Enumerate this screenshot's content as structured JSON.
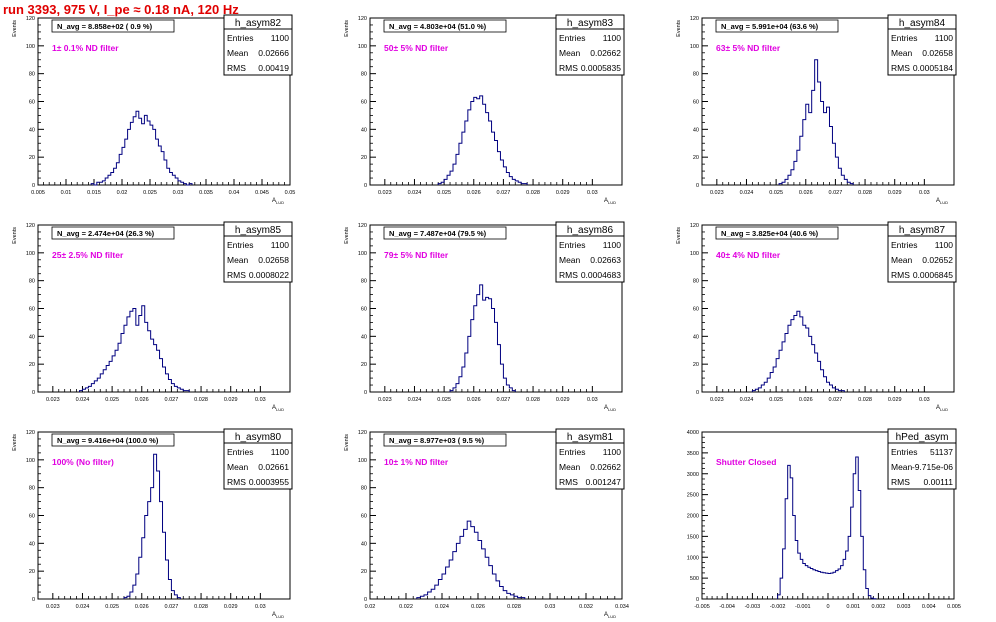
{
  "page_title": "run 3393,   975 V, I_pe ≈ 0.18 nA, 120 Hz",
  "colors": {
    "histogram": "#000080",
    "filter_label": "#e000e0",
    "title": "#e00000"
  },
  "stat_labels": {
    "entries": "Entries",
    "mean": "Mean",
    "rms": "RMS"
  },
  "chart_data": [
    {
      "type": "histogram",
      "name": "h_asym82",
      "entries": "1100",
      "mean": "0.02666",
      "rms": "0.00419",
      "navg": "N_avg = 8.858e+02 ( 0.9 %)",
      "filter": "1± 0.1% ND filter",
      "ylabel": "Events",
      "xlabel": "A_LUD",
      "xlim": [
        0.005,
        0.05
      ],
      "ylim": [
        0,
        120
      ],
      "xticks": [
        0.005,
        0.01,
        0.015,
        0.02,
        0.025,
        0.03,
        0.035,
        0.04,
        0.045,
        0.05
      ],
      "xtick_labels": [
        "0.005",
        "0.01",
        "0.015",
        "0.02",
        "0.025",
        "0.03",
        "0.035",
        "0.04",
        "0.045",
        "0.05"
      ],
      "yticks": [
        0,
        20,
        40,
        60,
        80,
        100,
        120
      ],
      "bins": {
        "x0": 0.0145,
        "width": 0.0005,
        "counts": [
          1,
          0,
          2,
          2,
          3,
          5,
          7,
          9,
          12,
          16,
          22,
          27,
          33,
          40,
          45,
          49,
          53,
          48,
          44,
          50,
          46,
          43,
          40,
          33,
          28,
          24,
          18,
          12,
          9,
          7,
          5,
          3,
          2,
          1,
          0,
          1
        ]
      }
    },
    {
      "type": "histogram",
      "name": "h_asym83",
      "entries": "1100",
      "mean": "0.02662",
      "rms": "0.0005835",
      "navg": "N_avg = 4.803e+04 (51.0 %)",
      "filter": "50± 5% ND filter",
      "ylabel": "Events",
      "xlabel": "A_LUD",
      "xlim": [
        0.0225,
        0.031
      ],
      "ylim": [
        0,
        120
      ],
      "xticks": [
        0.023,
        0.024,
        0.025,
        0.026,
        0.027,
        0.028,
        0.029,
        0.03
      ],
      "xtick_labels": [
        "0.023",
        "0.024",
        "0.025",
        "0.026",
        "0.027",
        "0.028",
        "0.029",
        "0.03"
      ],
      "yticks": [
        0,
        20,
        40,
        60,
        80,
        100,
        120
      ],
      "bins": {
        "x0": 0.0248,
        "width": 0.0001,
        "counts": [
          1,
          2,
          4,
          7,
          10,
          15,
          22,
          30,
          38,
          46,
          54,
          60,
          63,
          62,
          64,
          58,
          52,
          46,
          38,
          32,
          24,
          18,
          13,
          9,
          6,
          4,
          3,
          2,
          1,
          1
        ]
      }
    },
    {
      "type": "histogram",
      "name": "h_asym84",
      "entries": "1100",
      "mean": "0.02658",
      "rms": "0.0005184",
      "navg": "N_avg = 5.991e+04 (63.6 %)",
      "filter": "63± 5% ND filter",
      "ylabel": "Events",
      "xlabel": "A_LUD",
      "xlim": [
        0.0225,
        0.031
      ],
      "ylim": [
        0,
        120
      ],
      "xticks": [
        0.023,
        0.024,
        0.025,
        0.026,
        0.027,
        0.028,
        0.029,
        0.03
      ],
      "xtick_labels": [
        "0.023",
        "0.024",
        "0.025",
        "0.026",
        "0.027",
        "0.028",
        "0.029",
        "0.03"
      ],
      "yticks": [
        0,
        20,
        40,
        60,
        80,
        100,
        120
      ],
      "bins": {
        "x0": 0.0251,
        "width": 0.0001,
        "counts": [
          1,
          2,
          4,
          7,
          11,
          17,
          25,
          35,
          47,
          58,
          52,
          68,
          90,
          74,
          60,
          52,
          56,
          42,
          30,
          20,
          12,
          7,
          4,
          2,
          1
        ]
      }
    },
    {
      "type": "histogram",
      "name": "h_asym85",
      "entries": "1100",
      "mean": "0.02658",
      "rms": "0.0008022",
      "navg": "N_avg = 2.474e+04 (26.3 %)",
      "filter": "25± 2.5% ND filter",
      "ylabel": "Events",
      "xlabel": "A_LUD",
      "xlim": [
        0.0225,
        0.031
      ],
      "ylim": [
        0,
        120
      ],
      "xticks": [
        0.023,
        0.024,
        0.025,
        0.026,
        0.027,
        0.028,
        0.029,
        0.03
      ],
      "xtick_labels": [
        "0.023",
        "0.024",
        "0.025",
        "0.026",
        "0.027",
        "0.028",
        "0.029",
        "0.03"
      ],
      "yticks": [
        0,
        20,
        40,
        60,
        80,
        100,
        120
      ],
      "bins": {
        "x0": 0.0239,
        "width": 0.0001,
        "counts": [
          1,
          2,
          3,
          4,
          6,
          8,
          10,
          13,
          16,
          19,
          22,
          26,
          30,
          35,
          42,
          48,
          54,
          58,
          60,
          48,
          55,
          62,
          50,
          44,
          38,
          34,
          30,
          24,
          18,
          13,
          9,
          6,
          4,
          3,
          2,
          1,
          1
        ]
      }
    },
    {
      "type": "histogram",
      "name": "h_asym86",
      "entries": "1100",
      "mean": "0.02663",
      "rms": "0.0004683",
      "navg": "N_avg = 7.487e+04 (79.5 %)",
      "filter": "79± 5% ND filter",
      "ylabel": "Events",
      "xlabel": "A_LUD",
      "xlim": [
        0.0225,
        0.031
      ],
      "ylim": [
        0,
        120
      ],
      "xticks": [
        0.023,
        0.024,
        0.025,
        0.026,
        0.027,
        0.028,
        0.029,
        0.03
      ],
      "xtick_labels": [
        "0.023",
        "0.024",
        "0.025",
        "0.026",
        "0.027",
        "0.028",
        "0.029",
        "0.03"
      ],
      "yticks": [
        0,
        20,
        40,
        60,
        80,
        100,
        120
      ],
      "bins": {
        "x0": 0.0252,
        "width": 0.0001,
        "counts": [
          1,
          3,
          6,
          11,
          18,
          28,
          40,
          52,
          62,
          70,
          77,
          66,
          68,
          67,
          60,
          50,
          34,
          20,
          10,
          5,
          3,
          1
        ]
      }
    },
    {
      "type": "histogram",
      "name": "h_asym87",
      "entries": "1100",
      "mean": "0.02652",
      "rms": "0.0006845",
      "navg": "N_avg = 3.825e+04 (40.6 %)",
      "filter": "40± 4% ND filter",
      "ylabel": "Events",
      "xlabel": "A_LUD",
      "xlim": [
        0.0225,
        0.031
      ],
      "ylim": [
        0,
        120
      ],
      "xticks": [
        0.023,
        0.024,
        0.025,
        0.026,
        0.027,
        0.028,
        0.029,
        0.03
      ],
      "xtick_labels": [
        "0.023",
        "0.024",
        "0.025",
        "0.026",
        "0.027",
        "0.028",
        "0.029",
        "0.03"
      ],
      "yticks": [
        0,
        20,
        40,
        60,
        80,
        100,
        120
      ],
      "bins": {
        "x0": 0.0242,
        "width": 0.0001,
        "counts": [
          1,
          2,
          3,
          5,
          7,
          10,
          14,
          18,
          24,
          30,
          36,
          42,
          48,
          52,
          55,
          58,
          54,
          48,
          46,
          40,
          34,
          28,
          22,
          16,
          11,
          7,
          5,
          3,
          2,
          1,
          1
        ]
      }
    },
    {
      "type": "histogram",
      "name": "h_asym80",
      "entries": "1100",
      "mean": "0.02661",
      "rms": "0.0003955",
      "navg": "N_avg = 9.416e+04 (100.0 %)",
      "filter": "100% (No filter)",
      "ylabel": "Events",
      "xlabel": "A_LUD",
      "xlim": [
        0.0225,
        0.031
      ],
      "ylim": [
        0,
        120
      ],
      "xticks": [
        0.023,
        0.024,
        0.025,
        0.026,
        0.027,
        0.028,
        0.029,
        0.03
      ],
      "xtick_labels": [
        "0.023",
        "0.024",
        "0.025",
        "0.026",
        "0.027",
        "0.028",
        "0.029",
        "0.03"
      ],
      "yticks": [
        0,
        20,
        40,
        60,
        80,
        100,
        120
      ],
      "bins": {
        "x0": 0.0254,
        "width": 0.0001,
        "counts": [
          1,
          2,
          5,
          10,
          18,
          30,
          44,
          60,
          70,
          80,
          104,
          92,
          70,
          48,
          28,
          14,
          6,
          3,
          1
        ]
      }
    },
    {
      "type": "histogram",
      "name": "h_asym81",
      "entries": "1100",
      "mean": "0.02662",
      "rms": "0.001247",
      "navg": "N_avg = 8.977e+03 ( 9.5 %)",
      "filter": "10± 1% ND filter",
      "ylabel": "Events",
      "xlabel": "A_LUD",
      "xlim": [
        0.02,
        0.034
      ],
      "ylim": [
        0,
        120
      ],
      "xticks": [
        0.02,
        0.022,
        0.024,
        0.026,
        0.028,
        0.03,
        0.032,
        0.034
      ],
      "xtick_labels": [
        "0.02",
        "0.022",
        "0.024",
        "0.026",
        "0.028",
        "0.03",
        "0.032",
        "0.034"
      ],
      "yticks": [
        0,
        20,
        40,
        60,
        80,
        100,
        120
      ],
      "bins": {
        "x0": 0.0226,
        "width": 0.0002,
        "counts": [
          1,
          2,
          3,
          5,
          7,
          10,
          14,
          18,
          23,
          28,
          34,
          40,
          45,
          50,
          56,
          52,
          48,
          42,
          36,
          30,
          24,
          18,
          13,
          9,
          6,
          4,
          3,
          2,
          1,
          1
        ]
      }
    },
    {
      "type": "histogram",
      "name": "hPed_asym",
      "entries": "51137",
      "mean": "-9.715e-06",
      "rms": "0.00111",
      "navg": "",
      "filter": "Shutter Closed",
      "ylabel": "",
      "xlabel": "",
      "xlim": [
        -0.005,
        0.005
      ],
      "ylim": [
        0,
        4000
      ],
      "xticks": [
        -0.005,
        -0.004,
        -0.003,
        -0.002,
        -0.001,
        0,
        0.001,
        0.002,
        0.003,
        0.004,
        0.005
      ],
      "xtick_labels": [
        "-0.005",
        "-0.004",
        "-0.003",
        "-0.002",
        "-0.001",
        "0",
        "0.001",
        "0.002",
        "0.003",
        "0.004",
        "0.005"
      ],
      "yticks": [
        0,
        500,
        1000,
        1500,
        2000,
        2500,
        3000,
        3500,
        4000
      ],
      "bins": {
        "x0": -0.002,
        "width": 0.0001,
        "counts": [
          100,
          500,
          1200,
          2400,
          3200,
          2900,
          2000,
          1400,
          1100,
          950,
          850,
          800,
          760,
          730,
          700,
          680,
          660,
          640,
          630,
          620,
          610,
          620,
          640,
          680,
          720,
          800,
          950,
          1150,
          1500,
          2200,
          3000,
          3400,
          2600,
          1500,
          700,
          250,
          80,
          20,
          5
        ]
      }
    }
  ]
}
